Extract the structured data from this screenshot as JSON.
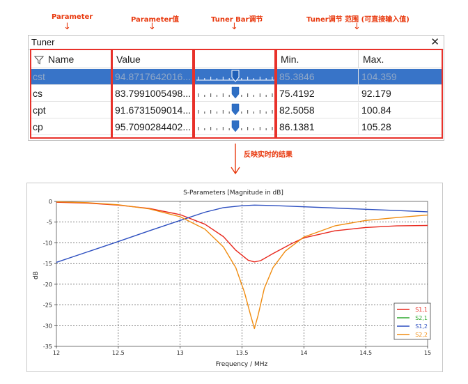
{
  "annotations": {
    "parameter": "Parameter",
    "parameter_value": "Parameter值",
    "tuner_bar": "Tuner Bar调节",
    "tuner_range": "Tuner调节 范围 (可直接输入值)",
    "result": "反映实时的结果"
  },
  "tuner": {
    "title": "Tuner",
    "close_glyph": "✕",
    "columns": [
      "Name",
      "Value",
      "",
      "Min.",
      "Max."
    ],
    "rows": [
      {
        "name": "cst",
        "value": "94.8717642016...",
        "min": "85.3846",
        "max": "104.359",
        "slider": 0.5,
        "selected": true
      },
      {
        "name": "cs",
        "value": "83.7991005498...",
        "min": "75.4192",
        "max": "92.179",
        "slider": 0.5,
        "selected": false
      },
      {
        "name": "cpt",
        "value": "91.6731509014...",
        "min": "82.5058",
        "max": "100.84",
        "slider": 0.5,
        "selected": false
      },
      {
        "name": "cp",
        "value": "95.7090284402...",
        "min": "86.1381",
        "max": "105.28",
        "slider": 0.5,
        "selected": false
      }
    ]
  },
  "colors": {
    "annotation": "#e8380d",
    "selection": "#3874c8",
    "slider_handle": "#2f6fc4",
    "highlight_box": "#e8312a"
  },
  "chart_data": {
    "type": "line",
    "title": "S-Parameters [Magnitude in dB]",
    "xlabel": "Frequency / MHz",
    "ylabel": "dB",
    "xlim": [
      12,
      15
    ],
    "ylim": [
      -35,
      0
    ],
    "xticks": [
      12,
      12.5,
      13,
      13.5,
      14,
      14.5,
      15
    ],
    "yticks": [
      0,
      -5,
      -10,
      -15,
      -20,
      -25,
      -30,
      -35
    ],
    "grid": true,
    "legend": "bottom-right",
    "series": [
      {
        "name": "S1,1",
        "color": "#e8271c",
        "x": [
          12,
          12.25,
          12.5,
          12.75,
          13,
          13.2,
          13.35,
          13.45,
          13.55,
          13.6,
          13.65,
          13.75,
          13.9,
          14,
          14.25,
          14.5,
          14.75,
          15
        ],
        "y": [
          -0.2,
          -0.4,
          -0.9,
          -1.7,
          -3.2,
          -5.5,
          -8.5,
          -11.8,
          -14.2,
          -14.6,
          -14.3,
          -12.6,
          -10.2,
          -8.8,
          -7.1,
          -6.3,
          -5.9,
          -5.8
        ]
      },
      {
        "name": "S2,1",
        "color": "#2ea82e",
        "x": [],
        "y": []
      },
      {
        "name": "S1,2",
        "color": "#2d4fc0",
        "x": [
          12,
          12.25,
          12.5,
          12.75,
          13,
          13.2,
          13.35,
          13.5,
          13.6,
          13.75,
          14,
          14.25,
          14.5,
          14.75,
          15
        ],
        "y": [
          -14.7,
          -12.2,
          -9.7,
          -7.1,
          -4.6,
          -2.6,
          -1.5,
          -1.05,
          -0.9,
          -1.0,
          -1.3,
          -1.6,
          -1.9,
          -2.2,
          -2.5
        ]
      },
      {
        "name": "S2,2",
        "color": "#f08c10",
        "x": [
          12,
          12.25,
          12.5,
          12.75,
          13,
          13.2,
          13.35,
          13.45,
          13.52,
          13.57,
          13.6,
          13.63,
          13.68,
          13.75,
          13.85,
          14,
          14.25,
          14.5,
          14.75,
          15
        ],
        "y": [
          -0.1,
          -0.3,
          -0.8,
          -1.8,
          -3.7,
          -6.7,
          -11.0,
          -16.0,
          -22.0,
          -27.5,
          -30.7,
          -27.5,
          -21.0,
          -16.0,
          -12.0,
          -8.6,
          -5.9,
          -4.6,
          -3.9,
          -3.3
        ]
      }
    ]
  }
}
